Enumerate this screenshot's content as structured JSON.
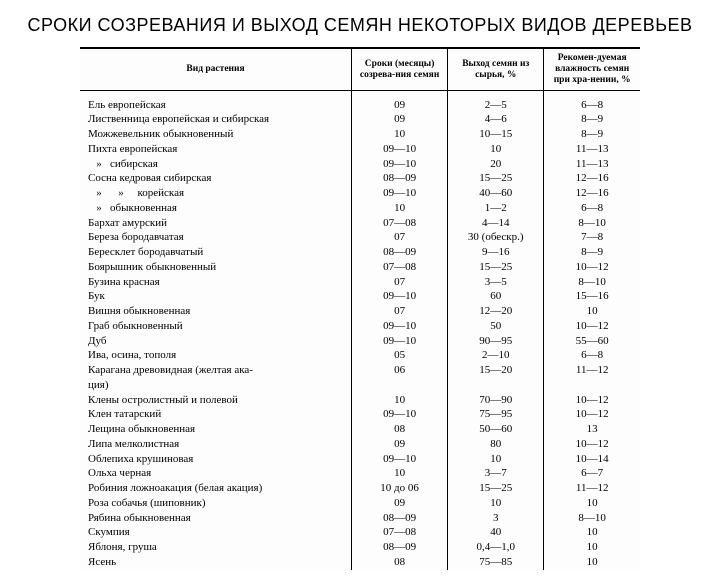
{
  "title": "СРОКИ СОЗРЕВАНИЯ И ВЫХОД СЕМЯН НЕКОТОРЫХ ВИДОВ ДЕРЕВЬЕВ",
  "headers": {
    "species": "Вид растения",
    "months": "Сроки (месяцы) созрева-ния семян",
    "yield": "Выход семян из сырья, %",
    "humidity": "Рекомен-дуемая влажность семян при хра-нении, %"
  },
  "rows": [
    {
      "sp": "Ель европейская",
      "m": "09",
      "y": "2—5",
      "h": "6—8"
    },
    {
      "sp": "Лиственница европейская и сибирская",
      "m": "09",
      "y": "4—6",
      "h": "8—9"
    },
    {
      "sp": "Можжевельник обыкновенный",
      "m": "10",
      "y": "10—15",
      "h": "8—9"
    },
    {
      "sp": "Пихта европейская",
      "m": "09—10",
      "y": "10",
      "h": "11—13"
    },
    {
      "sp": "   »   сибирская",
      "m": "09—10",
      "y": "20",
      "h": "11—13"
    },
    {
      "sp": "Сосна кедровая сибирская",
      "m": "08—09",
      "y": "15—25",
      "h": "12—16"
    },
    {
      "sp": "   »      »     корейская",
      "m": "09—10",
      "y": "40—60",
      "h": "12—16"
    },
    {
      "sp": "   »   обыкновенная",
      "m": "10",
      "y": "1—2",
      "h": "6—8"
    },
    {
      "sp": "Бархат амурский",
      "m": "07—08",
      "y": "4—14",
      "h": "8—10"
    },
    {
      "sp": "Береза бородавчатая",
      "m": "07",
      "y": "30 (обескр.)",
      "h": "7—8"
    },
    {
      "sp": "Бересклет бородавчатый",
      "m": "08—09",
      "y": "9—16",
      "h": "8—9"
    },
    {
      "sp": "Боярышник обыкновенный",
      "m": "07—08",
      "y": "15—25",
      "h": "10—12"
    },
    {
      "sp": "Бузина красная",
      "m": "07",
      "y": "3—5",
      "h": "8—10"
    },
    {
      "sp": "Бук",
      "m": "09—10",
      "y": "60",
      "h": "15—16"
    },
    {
      "sp": "Вишня обыкновенная",
      "m": "07",
      "y": "12—20",
      "h": "10"
    },
    {
      "sp": "Граб обыкновенный",
      "m": "09—10",
      "y": "50",
      "h": "10—12"
    },
    {
      "sp": "Дуб",
      "m": "09—10",
      "y": "90—95",
      "h": "55—60"
    },
    {
      "sp": "Ива, осина, тополя",
      "m": "05",
      "y": "2—10",
      "h": "6—8"
    },
    {
      "sp": "Карагана древовидная (желтая ака-",
      "m": "06",
      "y": "15—20",
      "h": "11—12"
    },
    {
      "sp": "ция)",
      "m": "",
      "y": "",
      "h": ""
    },
    {
      "sp": "Клены остролистный и полевой",
      "m": "10",
      "y": "70—90",
      "h": "10—12"
    },
    {
      "sp": "Клен татарский",
      "m": "09—10",
      "y": "75—95",
      "h": "10—12"
    },
    {
      "sp": "Лещина обыкновенная",
      "m": "08",
      "y": "50—60",
      "h": "13"
    },
    {
      "sp": "Липа мелколистная",
      "m": "09",
      "y": "80",
      "h": "10—12"
    },
    {
      "sp": "Облепиха крушиновая",
      "m": "09—10",
      "y": "10",
      "h": "10—14"
    },
    {
      "sp": "Ольха черная",
      "m": "10",
      "y": "3—7",
      "h": "6—7"
    },
    {
      "sp": "Робиния ложноакация (белая акация)",
      "m": "10 до 06",
      "y": "15—25",
      "h": "11—12"
    },
    {
      "sp": "Роза собачья (шиповник)",
      "m": "09",
      "y": "10",
      "h": "10"
    },
    {
      "sp": "Рябина обыкновенная",
      "m": "08—09",
      "y": "3",
      "h": "8—10"
    },
    {
      "sp": "Скумпия",
      "m": "07—08",
      "y": "40",
      "h": "10"
    },
    {
      "sp": "Яблоня, груша",
      "m": "08—09",
      "y": "0,4—1,0",
      "h": "10"
    },
    {
      "sp": "Ясень",
      "m": "08",
      "y": "75—85",
      "h": "10"
    }
  ]
}
